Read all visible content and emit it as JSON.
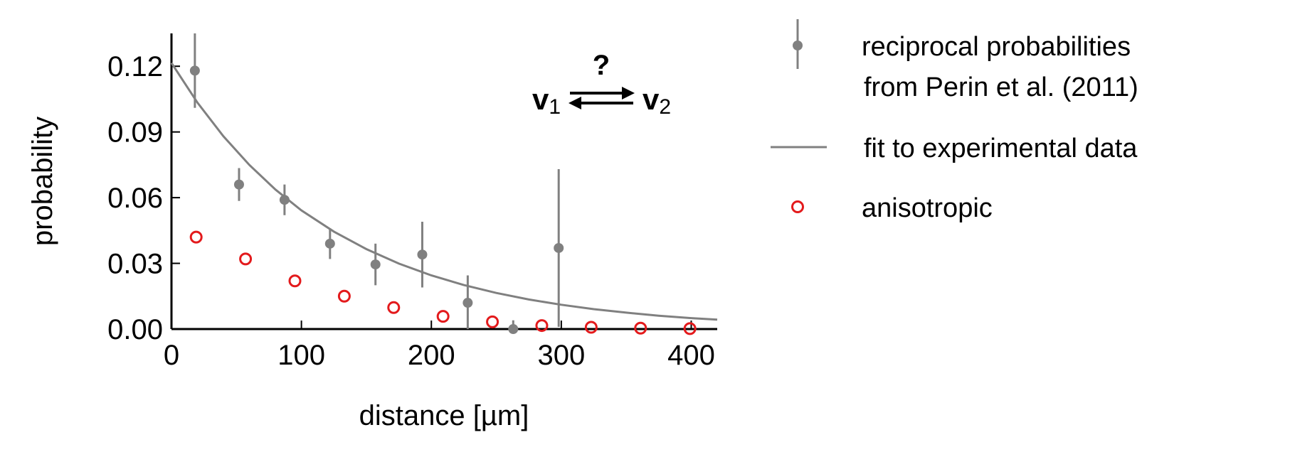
{
  "chart_data": {
    "type": "scatter",
    "xlabel": "distance [µm]",
    "ylabel": "probability",
    "xlim": [
      0,
      420
    ],
    "ylim": [
      0,
      0.135
    ],
    "x_ticks": [
      0,
      100,
      200,
      300,
      400
    ],
    "x_tick_labels": [
      "0",
      "100",
      "200",
      "300",
      "400"
    ],
    "y_ticks": [
      0.0,
      0.03,
      0.06,
      0.09,
      0.12
    ],
    "y_tick_labels": [
      "0.00",
      "0.03",
      "0.06",
      "0.09",
      "0.12"
    ],
    "grid": false,
    "legend_position": "right, outside plot",
    "series": [
      {
        "name": "reciprocal probabilities from Perin et al. (2011)",
        "legend_lines": [
          "reciprocal probabilities",
          "from Perin et al. (2011)"
        ],
        "kind": "errorbar",
        "color": "#808080",
        "points": [
          {
            "x": 18,
            "y": 0.118,
            "err": 0.017
          },
          {
            "x": 52,
            "y": 0.066,
            "err": 0.0075
          },
          {
            "x": 87,
            "y": 0.059,
            "err": 0.007
          },
          {
            "x": 122,
            "y": 0.039,
            "err": 0.007
          },
          {
            "x": 157,
            "y": 0.0295,
            "err": 0.0095
          },
          {
            "x": 193,
            "y": 0.034,
            "err": 0.015
          },
          {
            "x": 228,
            "y": 0.012,
            "err": 0.0125
          },
          {
            "x": 263,
            "y": 0.0,
            "err": 0.004
          },
          {
            "x": 298,
            "y": 0.037,
            "err": 0.036
          }
        ]
      },
      {
        "name": "fit to experimental data",
        "kind": "line",
        "color": "#808080",
        "x": [
          0,
          20,
          40,
          60,
          80,
          100,
          125,
          150,
          175,
          200,
          225,
          250,
          275,
          300,
          325,
          350,
          375,
          400,
          420
        ],
        "y": [
          0.1215,
          0.1034,
          0.088,
          0.0749,
          0.0637,
          0.0542,
          0.0445,
          0.0365,
          0.0299,
          0.0245,
          0.0201,
          0.0165,
          0.0135,
          0.0111,
          0.0091,
          0.0075,
          0.0061,
          0.005,
          0.0043
        ]
      },
      {
        "name": "anisotropic",
        "kind": "open-circle",
        "color": "#e31a1c",
        "x": [
          19,
          57,
          95,
          133,
          171,
          209,
          247,
          285,
          323,
          361,
          399
        ],
        "y": [
          0.042,
          0.032,
          0.022,
          0.015,
          0.0098,
          0.0058,
          0.0033,
          0.0016,
          0.0008,
          0.0004,
          0.0002
        ]
      }
    ]
  },
  "diagram": {
    "question_mark": "?",
    "node1": "v",
    "node1_sub": "1",
    "node2": "v",
    "node2_sub": "2"
  },
  "colors": {
    "data": "#808080",
    "fit": "#808080",
    "anisotropic": "#e31a1c",
    "axes": "#000000"
  }
}
